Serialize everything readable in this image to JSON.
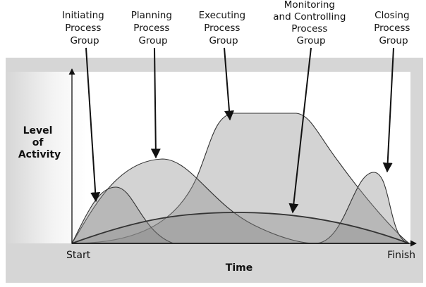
{
  "labels": {
    "initiating": [
      "Initiating",
      "Process",
      "Group"
    ],
    "planning": [
      "Planning",
      "Process",
      "Group"
    ],
    "executing": [
      "Executing",
      "Process",
      "Group"
    ],
    "monitoring": [
      "Monitoring",
      "and Controlling",
      "Process",
      "Group"
    ],
    "closing": [
      "Closing",
      "Process",
      "Group"
    ]
  },
  "y_axis_label": [
    "Level",
    "of",
    "Activity"
  ],
  "x_axis_label": "Time",
  "x_start": "Start",
  "x_finish": "Finish",
  "colors": {
    "frame": "#d6d6d6",
    "curve_fill": "#9a9a9a",
    "stroke": "#333333"
  }
}
